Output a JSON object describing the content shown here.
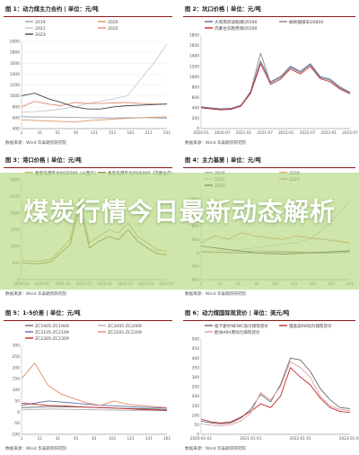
{
  "headline": "煤炭行情今日最新动态解析",
  "colors": {
    "overlay": "#b0d678",
    "title_rule": "#8a1a1a"
  },
  "panels": [
    {
      "title": "图 1：动力煤主力合约 | 单位：元/吨",
      "source": "数据来源：Wind  华泰期货研究院",
      "chart_data": {
        "type": "line",
        "title": "图 1：动力煤主力合约 | 单位：元/吨",
        "x_ticks": [
          "1",
          "31",
          "61",
          "91",
          "121",
          "151",
          "181",
          "211",
          "241"
        ],
        "ylim": [
          400,
          2000
        ],
        "y_ticks": [
          400,
          600,
          800,
          1000,
          1200,
          1400,
          1600,
          1800,
          2000
        ],
        "legend": "top",
        "grid": true,
        "series": [
          {
            "name": "2019",
            "color": "#9aa6b8",
            "values": [
              620,
              615,
              612,
              610,
              605,
              600,
              598,
              595,
              600,
              602,
              598,
              590
            ]
          },
          {
            "name": "2020",
            "color": "#d89a6a",
            "values": [
              560,
              550,
              540,
              530,
              520,
              545,
              560,
              575,
              590,
              600,
              610,
              615
            ]
          },
          {
            "name": "2021",
            "color": "#c8c8c8",
            "values": [
              700,
              710,
              730,
              760,
              800,
              860,
              900,
              950,
              1000,
              1300,
              1600,
              1950
            ]
          },
          {
            "name": "2022",
            "color": "#e28a6a",
            "values": [
              800,
              900,
              850,
              820,
              880,
              860,
              860,
              870,
              880,
              860,
              850,
              850
            ]
          },
          {
            "name": "2023",
            "color": "#444444",
            "values": [
              1000,
              1050,
              950,
              880,
              800,
              760,
              760,
              800,
              820,
              830,
              840,
              850
            ]
          }
        ]
      }
    },
    {
      "title": "图 2：坑口价格 | 单位：元/吨",
      "source": "数据来源：Wind  华泰期货研究院",
      "chart_data": {
        "type": "line",
        "title": "图 2：坑口价格 | 单位：元/吨",
        "x_ticks": [
          "2020-01",
          "2020-07",
          "2021-01",
          "2021-07",
          "2022-01",
          "2022-07",
          "2023-01",
          "2023-07"
        ],
        "ylim": [
          0,
          1800
        ],
        "y_ticks": [
          0,
          200,
          400,
          600,
          800,
          1000,
          1200,
          1400,
          1600,
          1800
        ],
        "legend": "top",
        "grid": false,
        "series": [
          {
            "name": "大同南郊弱粘煤Q5500",
            "color": "#5a6e9a",
            "values": [
              420,
              400,
              380,
              390,
              450,
              700,
              1300,
              900,
              1000,
              1200,
              1100,
              1250,
              1000,
              950,
              800,
              700
            ]
          },
          {
            "name": "榆林烟煤末Q5800",
            "color": "#888888",
            "values": [
              410,
              390,
              370,
              380,
              440,
              720,
              1450,
              880,
              980,
              1180,
              1080,
              1230,
              980,
              930,
              780,
              690
            ]
          },
          {
            "name": "内蒙古东胜原煤Q5500",
            "color": "#c0282a",
            "values": [
              400,
              380,
              360,
              370,
              430,
              680,
              1250,
              850,
              950,
              1150,
              1050,
              1200,
              960,
              900,
              760,
              670
            ]
          }
        ]
      }
    },
    {
      "title": "图 3：港口价格 | 单位：元/吨",
      "source": "数据来源：Wind  华泰期货研究院",
      "chart_data": {
        "type": "line",
        "title": "图 3：港口价格 | 单位：元/吨",
        "x_ticks": [
          "2020-01",
          "2020-07",
          "2021-01",
          "2021-07",
          "2022-01",
          "2022-07",
          "2023-01",
          "2023-07"
        ],
        "ylim": [
          0,
          3000
        ],
        "y_ticks": [
          0,
          500,
          1000,
          1500,
          2000,
          2500,
          3000
        ],
        "legend": "top",
        "grid": false,
        "series": [
          {
            "name": "秦皇岛港平仓价Q5500（山西产）",
            "color": "#c8a060",
            "values": [
              600,
              560,
              560,
              620,
              900,
              1200,
              2450,
              1100,
              1300,
              1500,
              1400,
              1700,
              1300,
              1100,
              900,
              850
            ]
          },
          {
            "name": "秦皇岛港平仓价Q5000（内蒙古产）",
            "color": "#8a6a3a",
            "values": [
              520,
              480,
              480,
              540,
              800,
              1050,
              2200,
              950,
              1150,
              1300,
              1200,
              1500,
              1150,
              950,
              780,
              740
            ]
          }
        ]
      }
    },
    {
      "title": "图 4：主力基差 | 单位：元/吨",
      "source": "数据来源：Wind  华泰期货研究院",
      "chart_data": {
        "type": "line",
        "title": "图 4：主力基差 | 单位：元/吨",
        "x_ticks": [
          "1",
          "31",
          "61",
          "91",
          "121",
          "151",
          "181",
          "211",
          "241"
        ],
        "ylim": [
          -800,
          1800
        ],
        "y_ticks": [
          -800,
          -400,
          0,
          400,
          800,
          1200,
          1600
        ],
        "legend": "top",
        "grid": true,
        "series": [
          {
            "name": "2019",
            "color": "#9aa6b8",
            "values": [
              20,
              10,
              0,
              -10,
              0,
              10,
              20,
              10,
              0,
              -10,
              0,
              10
            ]
          },
          {
            "name": "2020",
            "color": "#d89a6a",
            "values": [
              30,
              20,
              20,
              40,
              60,
              50,
              40,
              30,
              20,
              20,
              30,
              40
            ]
          },
          {
            "name": "2021",
            "color": "#c8c8c8",
            "values": [
              50,
              60,
              80,
              100,
              150,
              200,
              250,
              300,
              400,
              700,
              1100,
              1550
            ]
          },
          {
            "name": "2022",
            "color": "#e28a6a",
            "values": [
              300,
              500,
              400,
              600,
              500,
              450,
              400,
              500,
              450,
              400,
              350,
              300
            ]
          },
          {
            "name": "2023",
            "color": "#444444",
            "values": [
              200,
              150,
              100,
              50,
              0,
              -20,
              -40,
              -20,
              0,
              20,
              40,
              60
            ]
          }
        ]
      }
    },
    {
      "title": "图 5：1-5价差 | 单位：元/吨",
      "source": "数据来源：Wind  华泰期货研究院",
      "chart_data": {
        "type": "line",
        "title": "图 5：1-5价差 | 单位：元/吨",
        "x_ticks": [
          "1",
          "21",
          "41",
          "61",
          "81",
          "101",
          "121",
          "141",
          "161"
        ],
        "ylim": [
          -100,
          300
        ],
        "y_ticks": [
          -100,
          -50,
          0,
          50,
          100,
          150,
          200,
          250,
          300
        ],
        "legend": "top",
        "grid": false,
        "series": [
          {
            "name": "ZC1905-ZC1909",
            "color": "#6a6a6a",
            "values": [
              20,
              22,
              25,
              24,
              23,
              22,
              20,
              18,
              16,
              15,
              14,
              12
            ]
          },
          {
            "name": "ZC2005-ZC2009",
            "color": "#b0b0b0",
            "values": [
              10,
              12,
              14,
              13,
              12,
              11,
              10,
              9,
              8,
              8,
              7,
              6
            ]
          },
          {
            "name": "ZC2105-ZC2109",
            "color": "#5a6e9a",
            "values": [
              30,
              40,
              50,
              45,
              40,
              35,
              30,
              28,
              25,
              22,
              20,
              18
            ]
          },
          {
            "name": "ZC2205-ZC2209",
            "color": "#e28a6a",
            "values": [
              150,
              220,
              120,
              80,
              60,
              40,
              30,
              50,
              35,
              30,
              25,
              20
            ]
          },
          {
            "name": "ZC2305-ZC2309",
            "color": "#c0282a",
            "values": [
              40,
              35,
              30,
              28,
              25,
              22,
              20,
              18,
              15,
              12,
              10,
              8
            ]
          }
        ]
      }
    },
    {
      "title": "图 6：动力煤国际现货价 | 单位：美元/吨",
      "source": "数据来源：Wind  华泰期货研究院",
      "chart_data": {
        "type": "line",
        "title": "图 6：动力煤国际现货价 | 单位：美元/吨",
        "x_ticks": [
          "2020-01-01",
          "2021-01-01",
          "2022-01-01",
          "2023-01-01"
        ],
        "ylim": [
          0,
          500
        ],
        "y_ticks": [
          0,
          50,
          100,
          150,
          200,
          250,
          300,
          350,
          400,
          450,
          500
        ],
        "legend": "top",
        "grid": false,
        "series": [
          {
            "name": "纽卡斯尔NEWC动力煤现货价",
            "color": "#6a6a6a",
            "values": [
              70,
              60,
              55,
              60,
              85,
              130,
              210,
              170,
              260,
              400,
              390,
              330,
              240,
              180,
              140,
              135
            ]
          },
          {
            "name": "理查兹RB动力煤现货价",
            "color": "#c0282a",
            "values": [
              80,
              65,
              60,
              65,
              90,
              120,
              160,
              140,
              200,
              350,
              300,
              260,
              190,
              140,
              120,
              115
            ]
          },
          {
            "name": "欧洲ARA港动力煤现货价",
            "color": "#e0a0a0",
            "values": [
              55,
              48,
              45,
              50,
              70,
              110,
              220,
              180,
              250,
              380,
              350,
              300,
              200,
              150,
              130,
              125
            ]
          }
        ]
      }
    }
  ]
}
